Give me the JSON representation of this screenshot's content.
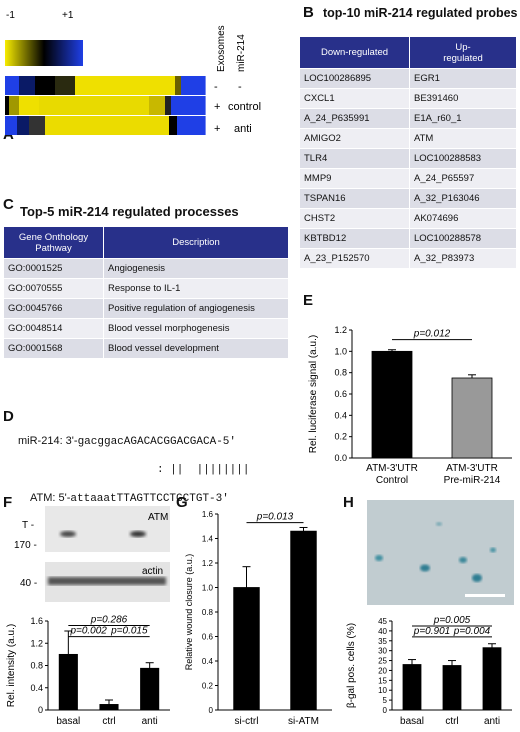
{
  "panelA": {
    "label": "A",
    "scale_min": "-1",
    "scale_max": "+1",
    "col_exosomes": "Exosomes",
    "col_mir214": "miR-214",
    "rows": [
      {
        "exo": "-",
        "mir": "-"
      },
      {
        "exo": "+",
        "mir": "control"
      },
      {
        "exo": "+",
        "mir": "anti"
      }
    ],
    "colors": {
      "low": "#f5e600",
      "mid": "#000000",
      "high": "#1f3fe6"
    }
  },
  "panelB": {
    "label": "B",
    "title": "top-10 miR-214 regulated probes",
    "headers": [
      "Down-regulated",
      "Up-\nregulated"
    ],
    "rows": [
      [
        "LOC100286895",
        "EGR1"
      ],
      [
        "CXCL1",
        "BE391460"
      ],
      [
        "A_24_P635991",
        "E1A_r60_1"
      ],
      [
        "AMIGO2",
        "ATM"
      ],
      [
        "TLR4",
        "LOC100288583"
      ],
      [
        "MMP9",
        "A_24_P65597"
      ],
      [
        "TSPAN16",
        "A_32_P163046"
      ],
      [
        "CHST2",
        "AK074696"
      ],
      [
        "KBTBD12",
        "LOC100288578"
      ],
      [
        "A_23_P152570",
        "A_32_P83973"
      ]
    ]
  },
  "panelC": {
    "label": "C",
    "title": "Top-5 miR-214 regulated processes",
    "headers": [
      "Gene Onthology\nPathway",
      "Description"
    ],
    "rows": [
      [
        "GO:0001525",
        "Angiogenesis"
      ],
      [
        "GO:0070555",
        "Response to IL-1"
      ],
      [
        "GO:0045766",
        "Positive regulation of angiogenesis"
      ],
      [
        "GO:0048514",
        "Blood vessel morphogenesis"
      ],
      [
        "GO:0001568",
        "Blood vessel development"
      ]
    ]
  },
  "panelD": {
    "label": "D",
    "mir_prefix": "miR-214: 3'-",
    "mir_lower": "gacggac",
    "mir_upper": "AGACACGGACGACA",
    "mir_suffix": "-5'",
    "pairing": ": ||  ||||||||",
    "atm_prefix": "ATM: 5'-",
    "atm_lower": "attaaat",
    "atm_upper": "TTAGTTCCTGCTGT",
    "atm_suffix": "-3'"
  },
  "panelE": {
    "label": "E",
    "pvalue": "p=0.012",
    "chart_data": {
      "type": "bar",
      "categories": [
        "ATM-3'UTR Control",
        "ATM-3'UTR Pre-miR-214"
      ],
      "values": [
        1.0,
        0.75
      ],
      "errors": [
        0.015,
        0.03
      ],
      "colors": [
        "#000000",
        "#999999"
      ],
      "ylabel": "Rel. luciferase signal (a.u.)",
      "ylim": [
        0,
        1.2
      ],
      "yticks": [
        "0.0",
        "0.2",
        "0.4",
        "0.6",
        "0.8",
        "1.0",
        "1.2"
      ],
      "cat_line1": [
        "ATM-3'UTR",
        "ATM-3'UTR"
      ],
      "cat_line2": [
        "Control",
        "Pre-miR-214"
      ]
    }
  },
  "panelF": {
    "label": "F",
    "blot_T": "T -",
    "blot_170": "170 -",
    "blot_40": "40 -",
    "blot_atm": "ATM",
    "blot_actin": "actin",
    "pvalues": [
      "p=0.286",
      "p=0.002",
      "p=0.015"
    ],
    "chart_data": {
      "type": "bar",
      "categories": [
        "basal",
        "ctrl",
        "anti"
      ],
      "values": [
        1.0,
        0.1,
        0.75
      ],
      "errors": [
        0.42,
        0.08,
        0.1
      ],
      "ylabel": "Rel. intensity (a.u.)",
      "ylim": [
        0,
        1.6
      ],
      "yticks": [
        "0",
        "0.4",
        "0.8",
        "1.2",
        "1.6"
      ]
    }
  },
  "panelG": {
    "label": "G",
    "pvalue": "p=0.013",
    "chart_data": {
      "type": "bar",
      "categories": [
        "si-ctrl",
        "si-ATM"
      ],
      "values": [
        1.0,
        1.46
      ],
      "errors": [
        0.17,
        0.03
      ],
      "ylabel": "Relative wound closure (a.u.)",
      "ylim": [
        0,
        1.6
      ],
      "yticks": [
        "0",
        "0.2",
        "0.4",
        "0.6",
        "0.8",
        "1.0",
        "1.2",
        "1.4",
        "1.6"
      ]
    }
  },
  "panelH": {
    "label": "H",
    "pvalues": [
      "p=0.005",
      "p=0.901",
      "p=0.004"
    ],
    "chart_data": {
      "type": "bar",
      "categories": [
        "basal",
        "ctrl",
        "anti"
      ],
      "values": [
        23,
        22.5,
        31.5
      ],
      "errors": [
        2.5,
        2.5,
        2.0
      ],
      "ylabel": "β-gal pos. cells (%)",
      "ylim": [
        0,
        45
      ],
      "yticks": [
        "0",
        "5",
        "10",
        "15",
        "20",
        "25",
        "30",
        "35",
        "40",
        "45"
      ]
    }
  }
}
